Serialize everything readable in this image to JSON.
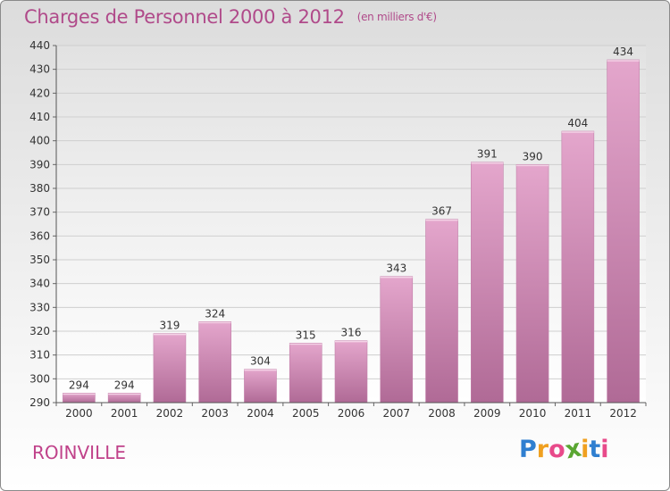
{
  "chart_data": {
    "type": "bar",
    "title": "Charges de Personnel 2000 à 2012",
    "subtitle": "(en milliers d'€)",
    "categories": [
      "2000",
      "2001",
      "2002",
      "2003",
      "2004",
      "2005",
      "2006",
      "2007",
      "2008",
      "2009",
      "2010",
      "2011",
      "2012"
    ],
    "values": [
      294,
      294,
      319,
      324,
      304,
      315,
      316,
      343,
      367,
      391,
      390,
      404,
      434
    ],
    "yticks": [
      290,
      300,
      310,
      320,
      330,
      340,
      350,
      360,
      370,
      380,
      390,
      400,
      410,
      420,
      430,
      440
    ],
    "ylim": [
      290,
      440
    ],
    "grid": true,
    "xlabel": "",
    "ylabel": ""
  },
  "footer": {
    "location": "ROINVILLE"
  },
  "logo": {
    "text": "Proxiti",
    "letters": [
      "P",
      "r",
      "o",
      "x",
      "i",
      "t",
      "i"
    ],
    "colors": [
      "#2f7fd0",
      "#f0a020",
      "#e84a8a",
      "#5aa632",
      "#f0a020",
      "#2f7fd0",
      "#e84a8a"
    ]
  },
  "colors": {
    "bar_top": "#e4a6cc",
    "bar_bottom": "#b06a96",
    "label": "#333333",
    "title": "#b04a8a"
  }
}
